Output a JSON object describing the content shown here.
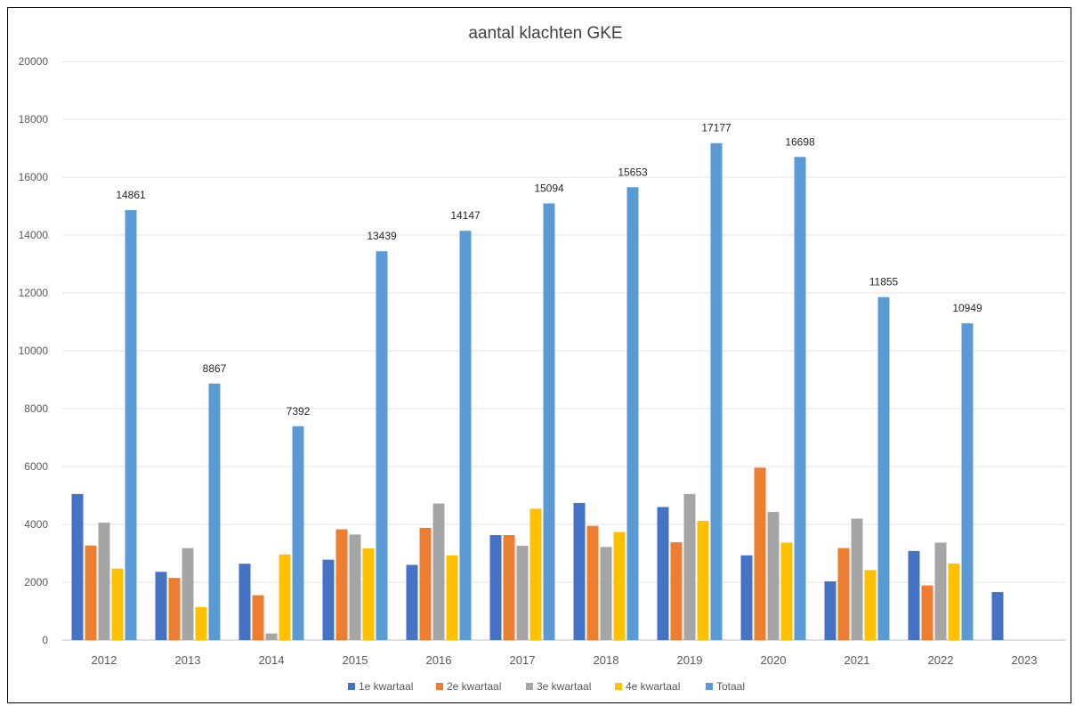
{
  "chart_data": {
    "type": "bar",
    "title": "aantal klachten GKE",
    "xlabel": "",
    "ylabel": "",
    "ylim": [
      0,
      20000
    ],
    "yticks": [
      0,
      2000,
      4000,
      6000,
      8000,
      10000,
      12000,
      14000,
      16000,
      18000,
      20000
    ],
    "grid": true,
    "legend_position": "bottom",
    "categories": [
      "2012",
      "2013",
      "2014",
      "2015",
      "2016",
      "2017",
      "2018",
      "2019",
      "2020",
      "2021",
      "2022",
      "2023"
    ],
    "series": [
      {
        "name": "1e kwartaal",
        "color": "#4472c4",
        "values": [
          5050,
          2360,
          2640,
          2780,
          2600,
          3630,
          4740,
          4600,
          2930,
          2030,
          3080,
          1660
        ]
      },
      {
        "name": "2e kwartaal",
        "color": "#ed7d31",
        "values": [
          3270,
          2150,
          1550,
          3830,
          3880,
          3630,
          3950,
          3380,
          5960,
          3180,
          1890,
          null
        ]
      },
      {
        "name": "3e kwartaal",
        "color": "#a5a5a5",
        "values": [
          4060,
          3180,
          230,
          3650,
          4720,
          3260,
          3220,
          5050,
          4430,
          4200,
          3370,
          null
        ]
      },
      {
        "name": "4e kwartaal",
        "color": "#ffc000",
        "values": [
          2470,
          1140,
          2960,
          3170,
          2930,
          4540,
          3740,
          4120,
          3370,
          2420,
          2650,
          null
        ]
      },
      {
        "name": "Totaal",
        "color": "#5b9bd5",
        "values": [
          14861,
          8867,
          7392,
          13439,
          14147,
          15094,
          15653,
          17177,
          16698,
          11855,
          10949,
          null
        ],
        "data_labels": [
          "14861",
          "8867",
          "7392",
          "13439",
          "14147",
          "15094",
          "15653",
          "17177",
          "16698",
          "11855",
          "10949",
          ""
        ]
      }
    ]
  }
}
